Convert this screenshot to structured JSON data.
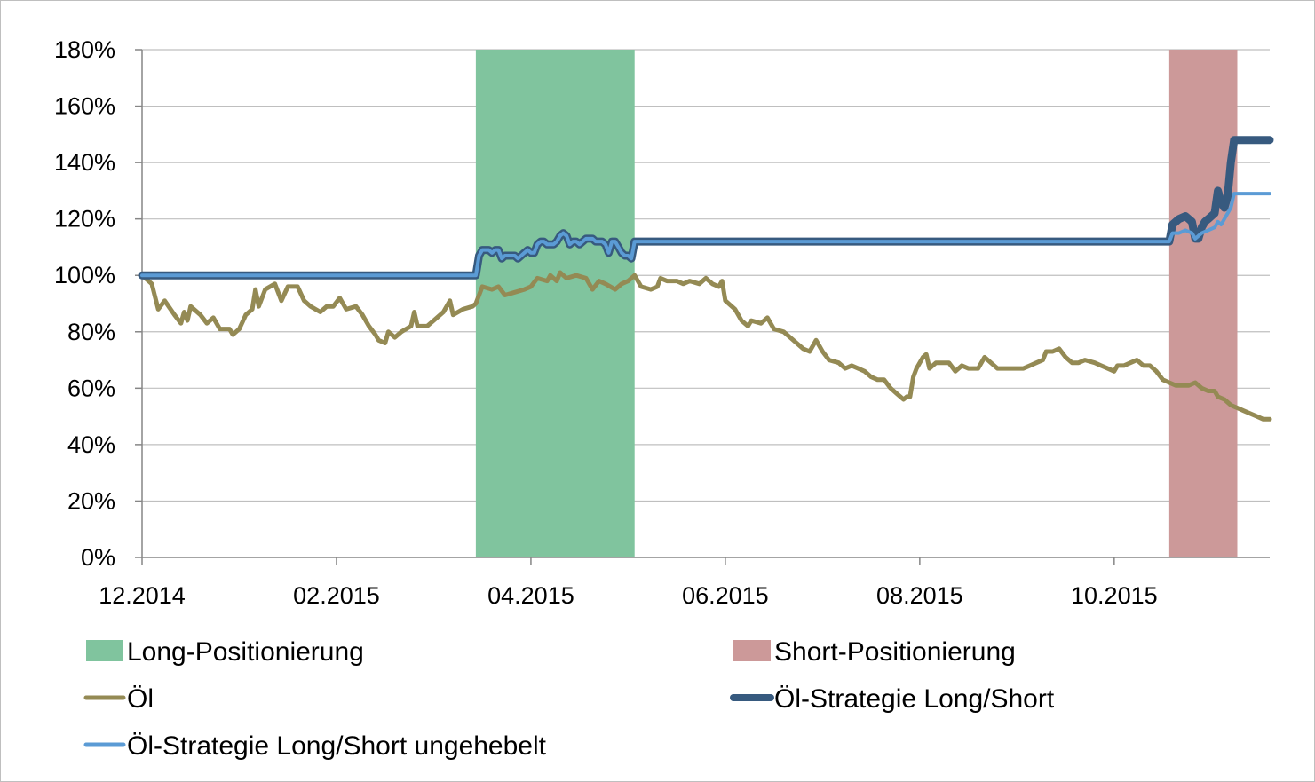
{
  "chart_data": {
    "type": "line",
    "title": "",
    "xlabel": "",
    "ylabel": "",
    "x_ticks": [
      "12.2014",
      "02.2015",
      "04.2015",
      "06.2015",
      "08.2015",
      "10.2015"
    ],
    "y_ticks": [
      "0%",
      "20%",
      "40%",
      "60%",
      "80%",
      "100%",
      "120%",
      "140%",
      "160%",
      "180%"
    ],
    "ylim": [
      0,
      180
    ],
    "x_range_days": [
      0,
      348
    ],
    "grid": true,
    "legend_position": "bottom",
    "bands": [
      {
        "name": "Long-Positionierung",
        "color": "#80c49e",
        "start": 103,
        "end": 152
      },
      {
        "name": "Short-Positionierung",
        "color": "#cc9999",
        "start": 317,
        "end": 338
      }
    ],
    "series": [
      {
        "name": "Öl",
        "color": "#948a54",
        "width": 5,
        "points": [
          [
            0,
            100
          ],
          [
            3,
            97
          ],
          [
            5,
            88
          ],
          [
            7,
            91
          ],
          [
            10,
            86
          ],
          [
            12,
            83
          ],
          [
            13,
            87
          ],
          [
            14,
            84
          ],
          [
            15,
            89
          ],
          [
            18,
            86
          ],
          [
            20,
            83
          ],
          [
            22,
            85
          ],
          [
            24,
            81
          ],
          [
            27,
            81
          ],
          [
            28,
            79
          ],
          [
            30,
            81
          ],
          [
            32,
            86
          ],
          [
            34,
            88
          ],
          [
            35,
            95
          ],
          [
            36,
            89
          ],
          [
            38,
            95
          ],
          [
            41,
            97
          ],
          [
            43,
            91
          ],
          [
            45,
            96
          ],
          [
            48,
            96
          ],
          [
            50,
            91
          ],
          [
            52,
            89
          ],
          [
            55,
            87
          ],
          [
            57,
            89
          ],
          [
            59,
            89
          ],
          [
            61,
            92
          ],
          [
            63,
            88
          ],
          [
            66,
            89
          ],
          [
            68,
            86
          ],
          [
            70,
            82
          ],
          [
            72,
            79
          ],
          [
            73,
            77
          ],
          [
            75,
            76
          ],
          [
            76,
            80
          ],
          [
            78,
            78
          ],
          [
            80,
            80
          ],
          [
            83,
            82
          ],
          [
            84,
            87
          ],
          [
            85,
            82
          ],
          [
            88,
            82
          ],
          [
            90,
            84
          ],
          [
            93,
            87
          ],
          [
            95,
            91
          ],
          [
            96,
            86
          ],
          [
            99,
            88
          ],
          [
            102,
            89
          ],
          [
            103,
            90
          ],
          [
            105,
            96
          ],
          [
            108,
            95
          ],
          [
            110,
            96
          ],
          [
            112,
            93
          ],
          [
            115,
            94
          ],
          [
            118,
            95
          ],
          [
            120,
            96
          ],
          [
            122,
            99
          ],
          [
            125,
            98
          ],
          [
            126,
            100
          ],
          [
            128,
            98
          ],
          [
            129,
            101
          ],
          [
            131,
            99
          ],
          [
            134,
            100
          ],
          [
            137,
            99
          ],
          [
            139,
            95
          ],
          [
            141,
            98
          ],
          [
            143,
            97
          ],
          [
            146,
            95
          ],
          [
            148,
            97
          ],
          [
            150,
            98
          ],
          [
            152,
            100
          ],
          [
            154,
            96
          ],
          [
            157,
            95
          ],
          [
            159,
            96
          ],
          [
            160,
            99
          ],
          [
            162,
            98
          ],
          [
            165,
            98
          ],
          [
            167,
            97
          ],
          [
            169,
            98
          ],
          [
            172,
            97
          ],
          [
            174,
            99
          ],
          [
            176,
            97
          ],
          [
            178,
            96
          ],
          [
            179,
            98
          ],
          [
            180,
            91
          ],
          [
            183,
            88
          ],
          [
            185,
            84
          ],
          [
            187,
            82
          ],
          [
            188,
            84
          ],
          [
            191,
            83
          ],
          [
            193,
            85
          ],
          [
            195,
            81
          ],
          [
            198,
            80
          ],
          [
            200,
            78
          ],
          [
            202,
            76
          ],
          [
            204,
            74
          ],
          [
            206,
            73
          ],
          [
            208,
            77
          ],
          [
            210,
            73
          ],
          [
            212,
            70
          ],
          [
            215,
            69
          ],
          [
            217,
            67
          ],
          [
            219,
            68
          ],
          [
            221,
            67
          ],
          [
            223,
            66
          ],
          [
            225,
            64
          ],
          [
            227,
            63
          ],
          [
            229,
            63
          ],
          [
            231,
            60
          ],
          [
            233,
            58
          ],
          [
            235,
            56
          ],
          [
            236,
            57
          ],
          [
            237,
            57
          ],
          [
            238,
            64
          ],
          [
            239,
            67
          ],
          [
            241,
            71
          ],
          [
            242,
            72
          ],
          [
            243,
            67
          ],
          [
            245,
            69
          ],
          [
            247,
            69
          ],
          [
            249,
            69
          ],
          [
            251,
            66
          ],
          [
            253,
            68
          ],
          [
            255,
            67
          ],
          [
            258,
            67
          ],
          [
            260,
            71
          ],
          [
            262,
            69
          ],
          [
            264,
            67
          ],
          [
            266,
            67
          ],
          [
            268,
            67
          ],
          [
            270,
            67
          ],
          [
            272,
            67
          ],
          [
            274,
            68
          ],
          [
            276,
            69
          ],
          [
            278,
            70
          ],
          [
            279,
            73
          ],
          [
            281,
            73
          ],
          [
            283,
            74
          ],
          [
            285,
            71
          ],
          [
            287,
            69
          ],
          [
            289,
            69
          ],
          [
            291,
            70
          ],
          [
            294,
            69
          ],
          [
            296,
            68
          ],
          [
            298,
            67
          ],
          [
            300,
            66
          ],
          [
            301,
            68
          ],
          [
            303,
            68
          ],
          [
            305,
            69
          ],
          [
            307,
            70
          ],
          [
            309,
            68
          ],
          [
            311,
            68
          ],
          [
            313,
            66
          ],
          [
            315,
            63
          ],
          [
            317,
            62
          ],
          [
            319,
            61
          ],
          [
            321,
            61
          ],
          [
            323,
            61
          ],
          [
            325,
            62
          ],
          [
            327,
            60
          ],
          [
            329,
            59
          ],
          [
            331,
            59
          ],
          [
            332,
            57
          ],
          [
            334,
            56
          ],
          [
            336,
            54
          ],
          [
            338,
            53
          ],
          [
            340,
            52
          ],
          [
            342,
            51
          ],
          [
            344,
            50
          ],
          [
            346,
            49
          ],
          [
            348,
            49
          ]
        ]
      },
      {
        "name": "Öl-Strategie Long/Short",
        "color": "#375a7f",
        "width": 9,
        "points": [
          [
            0,
            100
          ],
          [
            101,
            100
          ],
          [
            103,
            100
          ],
          [
            104,
            107
          ],
          [
            105,
            109
          ],
          [
            107,
            109
          ],
          [
            108,
            108
          ],
          [
            109,
            109
          ],
          [
            110,
            109
          ],
          [
            111,
            106
          ],
          [
            112,
            107
          ],
          [
            113,
            107
          ],
          [
            114,
            107
          ],
          [
            115,
            107
          ],
          [
            116,
            106
          ],
          [
            117,
            107
          ],
          [
            118,
            108
          ],
          [
            119,
            109
          ],
          [
            120,
            108
          ],
          [
            121,
            108
          ],
          [
            122,
            111
          ],
          [
            123,
            112
          ],
          [
            124,
            112
          ],
          [
            125,
            111
          ],
          [
            126,
            111
          ],
          [
            127,
            111
          ],
          [
            128,
            112
          ],
          [
            129,
            114
          ],
          [
            130,
            115
          ],
          [
            131,
            114
          ],
          [
            132,
            111
          ],
          [
            133,
            112
          ],
          [
            134,
            112
          ],
          [
            135,
            111
          ],
          [
            136,
            112
          ],
          [
            137,
            113
          ],
          [
            138,
            113
          ],
          [
            139,
            113
          ],
          [
            140,
            112
          ],
          [
            141,
            112
          ],
          [
            142,
            112
          ],
          [
            143,
            111
          ],
          [
            144,
            108
          ],
          [
            145,
            112
          ],
          [
            146,
            112
          ],
          [
            147,
            110
          ],
          [
            148,
            108
          ],
          [
            149,
            107
          ],
          [
            150,
            107
          ],
          [
            151,
            106
          ],
          [
            152,
            112
          ],
          [
            153,
            112
          ],
          [
            317,
            112
          ],
          [
            318,
            118
          ],
          [
            319,
            119
          ],
          [
            320,
            120
          ],
          [
            322,
            121
          ],
          [
            324,
            119
          ],
          [
            325,
            113
          ],
          [
            326,
            113
          ],
          [
            327,
            117
          ],
          [
            328,
            119
          ],
          [
            329,
            120
          ],
          [
            331,
            122
          ],
          [
            332,
            130
          ],
          [
            333,
            126
          ],
          [
            334,
            124
          ],
          [
            335,
            128
          ],
          [
            336,
            140
          ],
          [
            337,
            148
          ],
          [
            348,
            148
          ]
        ]
      },
      {
        "name": "Öl-Strategie Long/Short ungehebelt",
        "color": "#5b9bd5",
        "width": 4,
        "points": [
          [
            0,
            100
          ],
          [
            101,
            100
          ],
          [
            103,
            100
          ],
          [
            104,
            107
          ],
          [
            105,
            109
          ],
          [
            107,
            109
          ],
          [
            108,
            108
          ],
          [
            109,
            109
          ],
          [
            110,
            109
          ],
          [
            111,
            106
          ],
          [
            112,
            107
          ],
          [
            113,
            107
          ],
          [
            114,
            107
          ],
          [
            115,
            107
          ],
          [
            116,
            106
          ],
          [
            117,
            107
          ],
          [
            118,
            108
          ],
          [
            119,
            109
          ],
          [
            120,
            108
          ],
          [
            121,
            108
          ],
          [
            122,
            111
          ],
          [
            123,
            112
          ],
          [
            124,
            112
          ],
          [
            125,
            111
          ],
          [
            126,
            111
          ],
          [
            127,
            111
          ],
          [
            128,
            112
          ],
          [
            129,
            114
          ],
          [
            130,
            115
          ],
          [
            131,
            114
          ],
          [
            132,
            111
          ],
          [
            133,
            112
          ],
          [
            134,
            112
          ],
          [
            135,
            111
          ],
          [
            136,
            112
          ],
          [
            137,
            113
          ],
          [
            138,
            113
          ],
          [
            139,
            113
          ],
          [
            140,
            112
          ],
          [
            141,
            112
          ],
          [
            142,
            112
          ],
          [
            143,
            111
          ],
          [
            144,
            108
          ],
          [
            145,
            112
          ],
          [
            146,
            112
          ],
          [
            147,
            110
          ],
          [
            148,
            108
          ],
          [
            149,
            107
          ],
          [
            150,
            107
          ],
          [
            151,
            106
          ],
          [
            152,
            112
          ],
          [
            153,
            112
          ],
          [
            317,
            112
          ],
          [
            318,
            115
          ],
          [
            320,
            115
          ],
          [
            322,
            116
          ],
          [
            324,
            115
          ],
          [
            325,
            113
          ],
          [
            326,
            114
          ],
          [
            327,
            115
          ],
          [
            329,
            116
          ],
          [
            331,
            117
          ],
          [
            332,
            119
          ],
          [
            333,
            118
          ],
          [
            334,
            120
          ],
          [
            336,
            124
          ],
          [
            337,
            129
          ],
          [
            348,
            129
          ]
        ]
      }
    ],
    "legend": [
      {
        "label": "Long-Positionierung",
        "kind": "band",
        "color": "#80c49e"
      },
      {
        "label": "Short-Positionierung",
        "kind": "band",
        "color": "#cc9999"
      },
      {
        "label": "Öl",
        "kind": "line",
        "color": "#948a54"
      },
      {
        "label": "Öl-Strategie Long/Short",
        "kind": "line",
        "color": "#375a7f"
      },
      {
        "label": "Öl-Strategie Long/Short ungehebelt",
        "kind": "line",
        "color": "#5b9bd5"
      }
    ]
  }
}
